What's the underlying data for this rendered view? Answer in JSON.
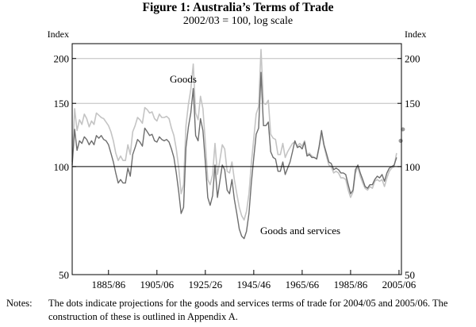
{
  "chart_data": {
    "type": "line",
    "title": "Figure 1: Australia’s Terms of Trade",
    "subtitle": "2002/03 = 100, log scale",
    "ylabel_left": "Index",
    "ylabel_right": "Index",
    "yscale": "log",
    "ylim": [
      50,
      220
    ],
    "yticks": [
      50,
      100,
      150,
      200
    ],
    "xlim": [
      1870,
      2006
    ],
    "xticks": [
      {
        "value": 1885,
        "label": "1885/86"
      },
      {
        "value": 1905,
        "label": "1905/06"
      },
      {
        "value": 1925,
        "label": "1925/26"
      },
      {
        "value": 1945,
        "label": "1945/46"
      },
      {
        "value": 1965,
        "label": "1965/66"
      },
      {
        "value": 1985,
        "label": "1985/86"
      },
      {
        "value": 2005,
        "label": "2005/06"
      }
    ],
    "reference_line": 100,
    "series": [
      {
        "name": "Goods",
        "label": "Goods",
        "color": "#c4c4c4",
        "points": [
          [
            1870,
            103
          ],
          [
            1871,
            145
          ],
          [
            1872,
            126
          ],
          [
            1873,
            135
          ],
          [
            1874,
            131
          ],
          [
            1875,
            140
          ],
          [
            1876,
            136
          ],
          [
            1877,
            129
          ],
          [
            1878,
            134
          ],
          [
            1879,
            131
          ],
          [
            1880,
            141
          ],
          [
            1881,
            139
          ],
          [
            1882,
            137
          ],
          [
            1883,
            136
          ],
          [
            1884,
            133
          ],
          [
            1885,
            130
          ],
          [
            1886,
            125
          ],
          [
            1887,
            118
          ],
          [
            1888,
            109
          ],
          [
            1889,
            104
          ],
          [
            1890,
            107
          ],
          [
            1891,
            104
          ],
          [
            1892,
            104
          ],
          [
            1893,
            115
          ],
          [
            1894,
            108
          ],
          [
            1895,
            125
          ],
          [
            1896,
            130
          ],
          [
            1897,
            137
          ],
          [
            1898,
            135
          ],
          [
            1899,
            132
          ],
          [
            1900,
            146
          ],
          [
            1901,
            144
          ],
          [
            1902,
            141
          ],
          [
            1903,
            142
          ],
          [
            1904,
            136
          ],
          [
            1905,
            134
          ],
          [
            1906,
            140
          ],
          [
            1907,
            137
          ],
          [
            1908,
            137
          ],
          [
            1909,
            138
          ],
          [
            1910,
            136
          ],
          [
            1911,
            128
          ],
          [
            1912,
            122
          ],
          [
            1913,
            112
          ],
          [
            1914,
            99
          ],
          [
            1915,
            84
          ],
          [
            1916,
            89
          ],
          [
            1917,
            130
          ],
          [
            1918,
            149
          ],
          [
            1919,
            164
          ],
          [
            1920,
            193
          ],
          [
            1921,
            141
          ],
          [
            1922,
            135
          ],
          [
            1923,
            157
          ],
          [
            1924,
            145
          ],
          [
            1925,
            117
          ],
          [
            1926,
            92
          ],
          [
            1927,
            89
          ],
          [
            1928,
            95
          ],
          [
            1929,
            116
          ],
          [
            1930,
            95
          ],
          [
            1931,
            104
          ],
          [
            1932,
            115
          ],
          [
            1933,
            112
          ],
          [
            1934,
            97
          ],
          [
            1935,
            96
          ],
          [
            1936,
            103
          ],
          [
            1937,
            92
          ],
          [
            1938,
            84
          ],
          [
            1939,
            77
          ],
          [
            1940,
            73
          ],
          [
            1941,
            71
          ],
          [
            1942,
            75
          ],
          [
            1943,
            84
          ],
          [
            1944,
            102
          ],
          [
            1945,
            120
          ],
          [
            1946,
            140
          ],
          [
            1947,
            147
          ],
          [
            1948,
            212
          ],
          [
            1949,
            150
          ],
          [
            1950,
            149
          ],
          [
            1951,
            153
          ],
          [
            1952,
            123
          ],
          [
            1953,
            120
          ],
          [
            1954,
            119
          ],
          [
            1955,
            108
          ],
          [
            1956,
            108
          ],
          [
            1957,
            116
          ],
          [
            1958,
            106
          ],
          [
            1959,
            110
          ],
          [
            1960,
            113
          ],
          [
            1961,
            116
          ],
          [
            1962,
            117
          ],
          [
            1963,
            114
          ],
          [
            1964,
            116
          ],
          [
            1965,
            114
          ],
          [
            1966,
            118
          ],
          [
            1967,
            108
          ],
          [
            1968,
            109
          ],
          [
            1969,
            107
          ],
          [
            1970,
            106
          ],
          [
            1971,
            105
          ],
          [
            1972,
            113
          ],
          [
            1973,
            124
          ],
          [
            1974,
            114
          ],
          [
            1975,
            107
          ],
          [
            1976,
            101
          ],
          [
            1977,
            100
          ],
          [
            1978,
            96
          ],
          [
            1979,
            97
          ],
          [
            1980,
            96
          ],
          [
            1981,
            93
          ],
          [
            1982,
            93
          ],
          [
            1983,
            92
          ],
          [
            1984,
            86
          ],
          [
            1985,
            82
          ],
          [
            1986,
            85
          ],
          [
            1987,
            96
          ],
          [
            1988,
            100
          ],
          [
            1989,
            94
          ],
          [
            1990,
            90
          ],
          [
            1991,
            87
          ],
          [
            1992,
            86
          ],
          [
            1993,
            88
          ],
          [
            1994,
            87
          ],
          [
            1995,
            91
          ],
          [
            1996,
            92
          ],
          [
            1997,
            91
          ],
          [
            1998,
            92
          ],
          [
            1999,
            88
          ],
          [
            2000,
            93
          ],
          [
            2001,
            97
          ],
          [
            2002,
            99
          ],
          [
            2003,
            100
          ],
          [
            2004,
            109
          ]
        ]
      },
      {
        "name": "Goods and services",
        "label": "Goods and services",
        "color": "#6e6e6e",
        "points": [
          [
            1870,
            101
          ],
          [
            1871,
            127
          ],
          [
            1872,
            111
          ],
          [
            1873,
            118
          ],
          [
            1874,
            116
          ],
          [
            1875,
            121
          ],
          [
            1876,
            119
          ],
          [
            1877,
            115
          ],
          [
            1878,
            118
          ],
          [
            1879,
            115
          ],
          [
            1880,
            122
          ],
          [
            1881,
            120
          ],
          [
            1882,
            122
          ],
          [
            1883,
            119
          ],
          [
            1884,
            118
          ],
          [
            1885,
            115
          ],
          [
            1886,
            109
          ],
          [
            1887,
            103
          ],
          [
            1888,
            96
          ],
          [
            1889,
            90
          ],
          [
            1890,
            92
          ],
          [
            1891,
            90
          ],
          [
            1892,
            90
          ],
          [
            1893,
            99
          ],
          [
            1894,
            94
          ],
          [
            1895,
            108
          ],
          [
            1896,
            113
          ],
          [
            1897,
            119
          ],
          [
            1898,
            117
          ],
          [
            1899,
            114
          ],
          [
            1900,
            128
          ],
          [
            1901,
            125
          ],
          [
            1902,
            122
          ],
          [
            1903,
            123
          ],
          [
            1904,
            118
          ],
          [
            1905,
            117
          ],
          [
            1906,
            121
          ],
          [
            1907,
            119
          ],
          [
            1908,
            118
          ],
          [
            1909,
            119
          ],
          [
            1910,
            117
          ],
          [
            1911,
            112
          ],
          [
            1912,
            106
          ],
          [
            1913,
            96
          ],
          [
            1914,
            85
          ],
          [
            1915,
            74
          ],
          [
            1916,
            77
          ],
          [
            1917,
            113
          ],
          [
            1918,
            129
          ],
          [
            1919,
            141
          ],
          [
            1920,
            165
          ],
          [
            1921,
            122
          ],
          [
            1922,
            118
          ],
          [
            1923,
            136
          ],
          [
            1924,
            126
          ],
          [
            1925,
            103
          ],
          [
            1926,
            82
          ],
          [
            1927,
            78
          ],
          [
            1928,
            83
          ],
          [
            1929,
            101
          ],
          [
            1930,
            82
          ],
          [
            1931,
            91
          ],
          [
            1932,
            101
          ],
          [
            1933,
            98
          ],
          [
            1934,
            86
          ],
          [
            1935,
            84
          ],
          [
            1936,
            92
          ],
          [
            1937,
            81
          ],
          [
            1938,
            74
          ],
          [
            1939,
            67
          ],
          [
            1940,
            64
          ],
          [
            1941,
            63
          ],
          [
            1942,
            66
          ],
          [
            1943,
            74
          ],
          [
            1944,
            90
          ],
          [
            1945,
            106
          ],
          [
            1946,
            123
          ],
          [
            1947,
            128
          ],
          [
            1948,
            183
          ],
          [
            1949,
            130
          ],
          [
            1950,
            130
          ],
          [
            1951,
            133
          ],
          [
            1952,
            110
          ],
          [
            1953,
            106
          ],
          [
            1954,
            105
          ],
          [
            1955,
            97
          ],
          [
            1956,
            97
          ],
          [
            1957,
            103
          ],
          [
            1958,
            95
          ],
          [
            1959,
            99
          ],
          [
            1960,
            103
          ],
          [
            1961,
            110
          ],
          [
            1962,
            118
          ],
          [
            1963,
            113
          ],
          [
            1964,
            114
          ],
          [
            1965,
            112
          ],
          [
            1966,
            117
          ],
          [
            1967,
            107
          ],
          [
            1968,
            108
          ],
          [
            1969,
            106
          ],
          [
            1970,
            106
          ],
          [
            1971,
            105
          ],
          [
            1972,
            114
          ],
          [
            1973,
            126
          ],
          [
            1974,
            115
          ],
          [
            1975,
            109
          ],
          [
            1976,
            103
          ],
          [
            1977,
            102
          ],
          [
            1978,
            98
          ],
          [
            1979,
            99
          ],
          [
            1980,
            98
          ],
          [
            1981,
            96
          ],
          [
            1982,
            96
          ],
          [
            1983,
            95
          ],
          [
            1984,
            89
          ],
          [
            1985,
            84
          ],
          [
            1986,
            86
          ],
          [
            1987,
            98
          ],
          [
            1988,
            101
          ],
          [
            1989,
            96
          ],
          [
            1990,
            92
          ],
          [
            1991,
            88
          ],
          [
            1992,
            87
          ],
          [
            1993,
            89
          ],
          [
            1994,
            89
          ],
          [
            1995,
            92
          ],
          [
            1996,
            94
          ],
          [
            1997,
            93
          ],
          [
            1998,
            95
          ],
          [
            1999,
            91
          ],
          [
            2000,
            96
          ],
          [
            2001,
            99
          ],
          [
            2002,
            100
          ],
          [
            2003,
            101
          ],
          [
            2004,
            106
          ]
        ]
      }
    ],
    "projections": [
      {
        "label": "2004/05 projection",
        "x": 2005.7,
        "value": 118,
        "color": "#9a9a9a"
      },
      {
        "label": "2005/06 projection",
        "x": 2006.6,
        "value": 127,
        "color": "#9a9a9a"
      }
    ]
  },
  "notes": {
    "label": "Notes:",
    "text": "The dots indicate projections for the goods and services terms of trade for 2004/05 and 2005/06. The construction of these is outlined in Appendix A."
  }
}
